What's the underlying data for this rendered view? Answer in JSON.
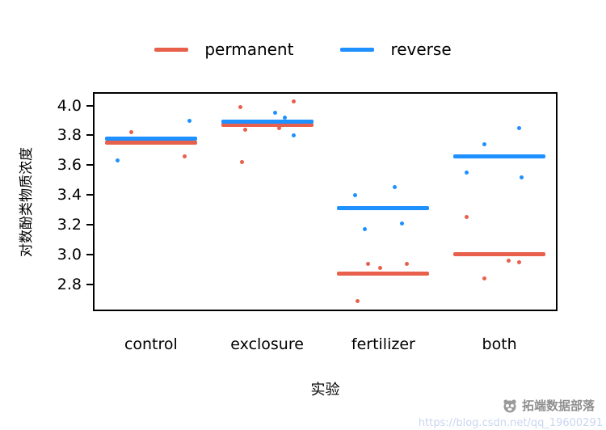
{
  "chart_data": {
    "type": "scatter",
    "title": "",
    "xlabel": "实验",
    "ylabel": "对数酚类物质浓度",
    "categories": [
      "control",
      "exclosure",
      "fertilizer",
      "both"
    ],
    "y_ticks": [
      2.8,
      3.0,
      3.2,
      3.4,
      3.6,
      3.8,
      4.0
    ],
    "ylim": [
      2.62,
      4.09
    ],
    "legend_position": "top",
    "grid": false,
    "series": [
      {
        "name": "permanent",
        "color": "#E8604C",
        "means": [
          3.75,
          3.87,
          2.87,
          3.0
        ],
        "points": [
          {
            "category": "control",
            "value": 3.82,
            "jitter": -0.17
          },
          {
            "category": "control",
            "value": 3.77,
            "jitter": -0.07
          },
          {
            "category": "control",
            "value": 3.75,
            "jitter": 0.32
          },
          {
            "category": "control",
            "value": 3.66,
            "jitter": 0.29
          },
          {
            "category": "exclosure",
            "value": 3.99,
            "jitter": -0.23
          },
          {
            "category": "exclosure",
            "value": 3.84,
            "jitter": -0.19
          },
          {
            "category": "exclosure",
            "value": 3.85,
            "jitter": 0.1
          },
          {
            "category": "exclosure",
            "value": 4.03,
            "jitter": 0.23
          },
          {
            "category": "exclosure",
            "value": 3.62,
            "jitter": -0.22
          },
          {
            "category": "fertilizer",
            "value": 2.94,
            "jitter": -0.13
          },
          {
            "category": "fertilizer",
            "value": 2.69,
            "jitter": -0.22
          },
          {
            "category": "fertilizer",
            "value": 2.94,
            "jitter": 0.2
          },
          {
            "category": "fertilizer",
            "value": 2.91,
            "jitter": -0.03
          },
          {
            "category": "both",
            "value": 3.25,
            "jitter": -0.28
          },
          {
            "category": "both",
            "value": 2.84,
            "jitter": -0.13
          },
          {
            "category": "both",
            "value": 2.96,
            "jitter": 0.08
          },
          {
            "category": "both",
            "value": 2.95,
            "jitter": 0.17
          }
        ]
      },
      {
        "name": "reverse",
        "color": "#1E90FF",
        "means": [
          3.78,
          3.89,
          3.31,
          3.66
        ],
        "points": [
          {
            "category": "control",
            "value": 3.63,
            "jitter": -0.29
          },
          {
            "category": "control",
            "value": 3.78,
            "jitter": -0.04
          },
          {
            "category": "control",
            "value": 3.9,
            "jitter": 0.33
          },
          {
            "category": "exclosure",
            "value": 3.95,
            "jitter": 0.07
          },
          {
            "category": "exclosure",
            "value": 3.8,
            "jitter": 0.23
          },
          {
            "category": "exclosure",
            "value": 3.92,
            "jitter": 0.15
          },
          {
            "category": "fertilizer",
            "value": 3.4,
            "jitter": -0.24
          },
          {
            "category": "fertilizer",
            "value": 3.17,
            "jitter": -0.16
          },
          {
            "category": "fertilizer",
            "value": 3.45,
            "jitter": 0.1
          },
          {
            "category": "fertilizer",
            "value": 3.21,
            "jitter": 0.16
          },
          {
            "category": "both",
            "value": 3.55,
            "jitter": -0.28
          },
          {
            "category": "both",
            "value": 3.74,
            "jitter": -0.13
          },
          {
            "category": "both",
            "value": 3.85,
            "jitter": 0.17
          },
          {
            "category": "both",
            "value": 3.52,
            "jitter": 0.19
          }
        ]
      }
    ]
  },
  "watermark": {
    "brand": "拓端数据部落",
    "url": "https://blog.csdn.net/qq_19600291"
  }
}
